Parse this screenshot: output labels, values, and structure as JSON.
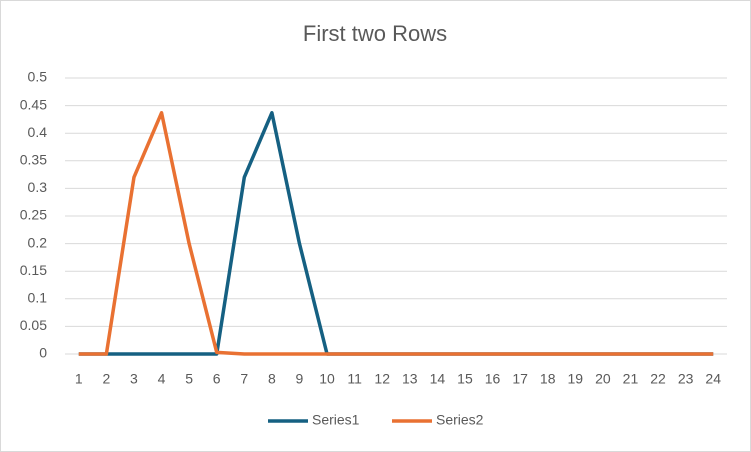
{
  "chart_data": {
    "type": "line",
    "title": "First two Rows",
    "categories": [
      1,
      2,
      3,
      4,
      5,
      6,
      7,
      8,
      9,
      10,
      11,
      12,
      13,
      14,
      15,
      16,
      17,
      18,
      19,
      20,
      21,
      22,
      23,
      24
    ],
    "series": [
      {
        "name": "Series1",
        "color": "#156082",
        "values": [
          0,
          0,
          0,
          0,
          0,
          0,
          0.32,
          0.437,
          0.2,
          0,
          0,
          0,
          0,
          0,
          0,
          0,
          0,
          0,
          0,
          0,
          0,
          0,
          0,
          0
        ]
      },
      {
        "name": "Series2",
        "color": "#e97132",
        "values": [
          0,
          0,
          0.32,
          0.437,
          0.2,
          0.003,
          0,
          0,
          0,
          0,
          0,
          0,
          0,
          0,
          0,
          0,
          0,
          0,
          0,
          0,
          0,
          0,
          0,
          0
        ]
      }
    ],
    "ylim": [
      0,
      0.5
    ],
    "yticks": [
      0,
      0.05,
      0.1,
      0.15,
      0.2,
      0.25,
      0.3,
      0.35,
      0.4,
      0.45,
      0.5
    ],
    "grid": true,
    "legend": "bottom"
  }
}
